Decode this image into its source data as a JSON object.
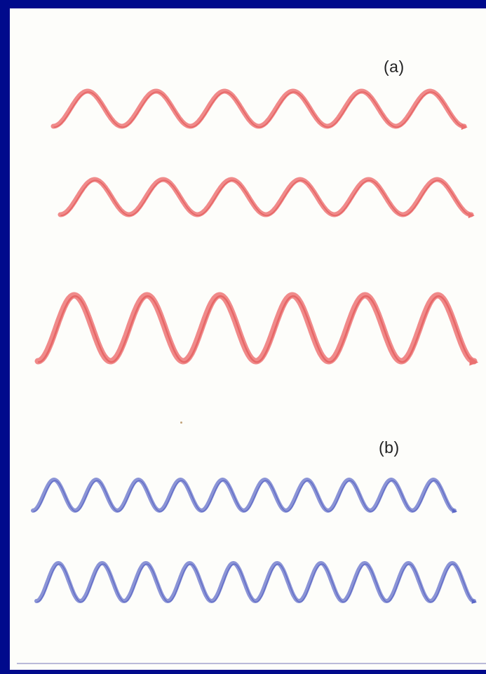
{
  "labels": {
    "a": "(a)",
    "b": "(b)"
  },
  "colors": {
    "border": "#000a8c",
    "panel": "#fdfdfa",
    "red_wave": "#f08a8a",
    "red_wave_dark": "#e35b5b",
    "blue_wave": "#8b94d6",
    "blue_wave_dark": "#5561c2"
  },
  "groups": [
    {
      "key": "a",
      "color": "red",
      "waves": [
        {
          "cycles": 6,
          "amplitude_level": "small"
        },
        {
          "cycles": 6,
          "amplitude_level": "small"
        },
        {
          "cycles": 6,
          "amplitude_level": "large"
        }
      ]
    },
    {
      "key": "b",
      "color": "blue",
      "waves": [
        {
          "cycles": 10,
          "amplitude_level": "small"
        },
        {
          "cycles": 10,
          "amplitude_level": "small"
        }
      ]
    }
  ]
}
